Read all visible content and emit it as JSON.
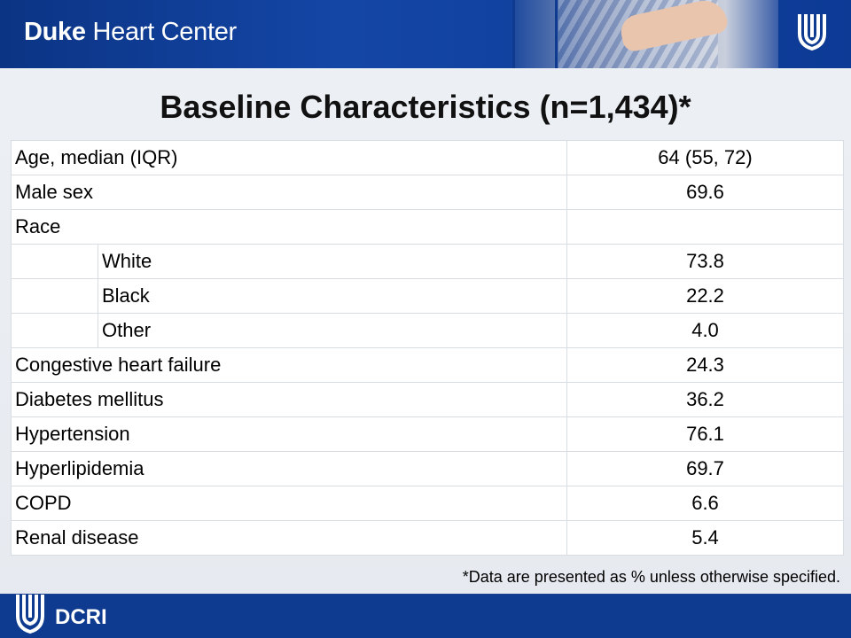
{
  "header": {
    "brand_bold": "Duke",
    "brand_rest": " Heart Center",
    "logo_icon": "duke-shield-icon"
  },
  "title": "Baseline Characteristics (n=1,434)*",
  "table": {
    "rows": [
      {
        "label": "Age, median (IQR)",
        "value": "64 (55, 72)"
      },
      {
        "label": "Male sex",
        "value": "69.6"
      },
      {
        "label": "Race",
        "value": ""
      },
      {
        "sublabel": "White",
        "value": "73.8"
      },
      {
        "sublabel": "Black",
        "value": "22.2"
      },
      {
        "sublabel": "Other",
        "value": "4.0"
      },
      {
        "label": "Congestive heart failure",
        "value": "24.3"
      },
      {
        "label": "Diabetes mellitus",
        "value": "36.2"
      },
      {
        "label": "Hypertension",
        "value": "76.1"
      },
      {
        "label": "Hyperlipidemia",
        "value": "69.7"
      },
      {
        "label": "COPD",
        "value": "6.6"
      },
      {
        "label": "Renal disease",
        "value": "5.4"
      }
    ]
  },
  "footnote": "*Data are presented as % unless otherwise specified.",
  "footer": {
    "org": "DCRI",
    "logo_icon": "duke-shield-icon"
  },
  "colors": {
    "banner": "#0e3a8f",
    "background": "#e9edf2"
  }
}
